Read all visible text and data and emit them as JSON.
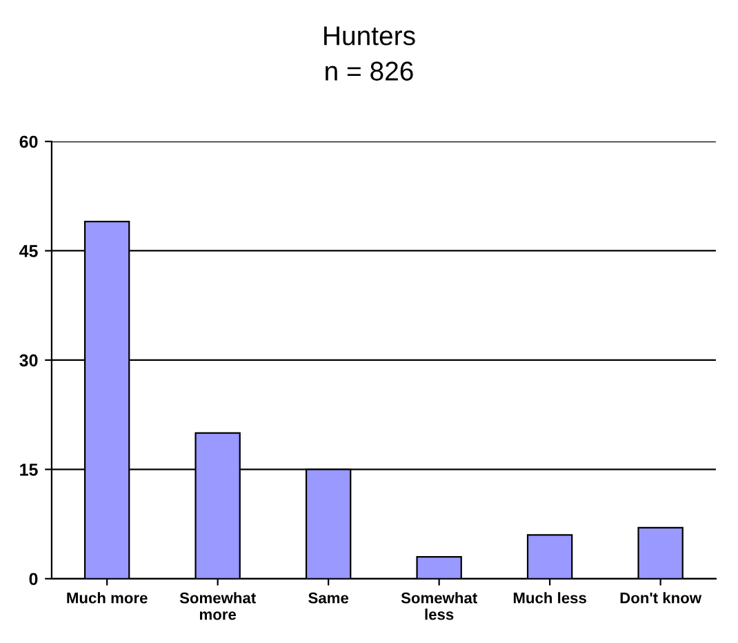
{
  "chart_data": {
    "type": "bar",
    "title": "Hunters",
    "subtitle": "n = 826",
    "categories": [
      "Much more",
      "Somewhat more",
      "Same",
      "Somewhat less",
      "Much less",
      "Don't know"
    ],
    "values": [
      49,
      20,
      15,
      3,
      6,
      7
    ],
    "color": "#9999ff",
    "ylim": [
      0,
      60
    ],
    "yticks": [
      0,
      15,
      30,
      45,
      60
    ],
    "grid": "y"
  }
}
